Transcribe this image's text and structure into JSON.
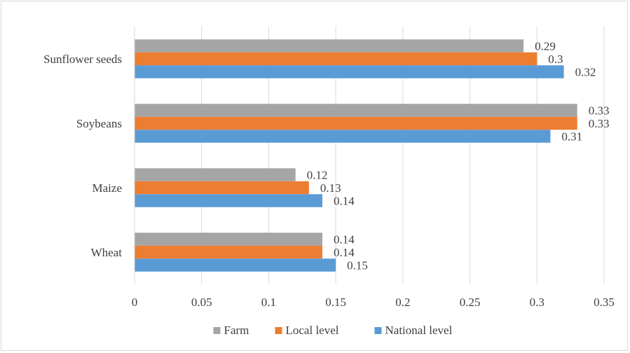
{
  "chart_data": {
    "type": "bar",
    "orientation": "horizontal",
    "categories": [
      "Wheat",
      "Maize",
      "Soybeans",
      "Sunflower seeds"
    ],
    "series": [
      {
        "name": "Farm",
        "values": [
          0.14,
          0.12,
          0.33,
          0.29
        ],
        "labels": [
          "0.14",
          "0.12",
          "0.33",
          "0.29"
        ],
        "color": "#a5a5a5"
      },
      {
        "name": "Local level",
        "values": [
          0.14,
          0.13,
          0.33,
          0.3
        ],
        "labels": [
          "0.14",
          "0.13",
          "0.33",
          "0.3"
        ],
        "color": "#ed7d31"
      },
      {
        "name": "National level",
        "values": [
          0.15,
          0.14,
          0.31,
          0.32
        ],
        "labels": [
          "0.15",
          "0.14",
          "0.31",
          "0.32"
        ],
        "color": "#5b9bd5"
      }
    ],
    "xlim": [
      0,
      0.35
    ],
    "xticks": [
      "0",
      "0.05",
      "0.1",
      "0.15",
      "0.2",
      "0.25",
      "0.3",
      "0.35"
    ],
    "title": "",
    "xlabel": "",
    "ylabel": "",
    "grid": true,
    "legend_position": "bottom",
    "gridline_color": "#d9d9d9"
  }
}
